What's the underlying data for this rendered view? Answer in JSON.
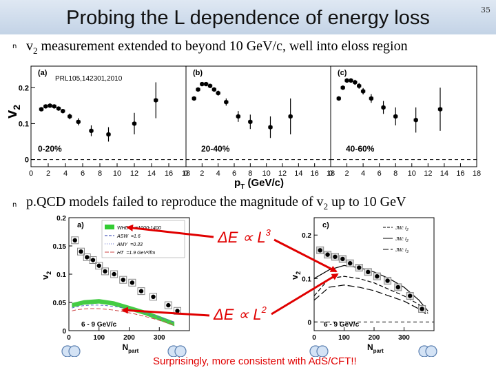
{
  "slide": {
    "title": "Probing the L dependence of energy loss",
    "page_number": "35",
    "bullets": [
      {
        "marker": "n",
        "pre": "v",
        "sub": "2",
        "post": " measurement extended to beyond 10 GeV/c, well into eloss region"
      },
      {
        "marker": "n",
        "pre": "p.QCD models failed to reproduce the magnitude of v",
        "sub": "2",
        "post": " up to 10 GeV"
      }
    ],
    "conclusion": "Surprisingly, more consistent with AdS/CFT!!"
  },
  "top_figure": {
    "reference": "PRL105,142301,2010",
    "y_axis_label": "v",
    "y_axis_sub": "2",
    "x_axis_label": "p",
    "x_axis_sub": "T",
    "x_axis_unit": " (GeV/c)",
    "y_ticks": [
      "0",
      "0.1",
      "0.2"
    ],
    "x_ticks": [
      "0",
      "2",
      "4",
      "6",
      "8",
      "10",
      "12",
      "14",
      "16",
      "18"
    ],
    "panels": [
      {
        "tag": "(a)",
        "centrality": "0-20%"
      },
      {
        "tag": "(b)",
        "centrality": "20-40%"
      },
      {
        "tag": "(c)",
        "centrality": "40-60%"
      }
    ]
  },
  "bottom_left": {
    "tag": "a)",
    "y_label": "v",
    "y_sub": "2",
    "x_label": "N",
    "x_sub": "part",
    "y_ticks": [
      "0",
      "0.05",
      "0.1",
      "0.15",
      "0.2"
    ],
    "x_ticks": [
      "0",
      "100",
      "200",
      "300"
    ],
    "range_label": "6 - 9 GeV/c",
    "legend": [
      "WHDG",
      "ASW",
      "AMY",
      "HT"
    ],
    "legend_params": [
      "=1000-1400",
      "=1.6",
      "=0.33",
      "=1.9 GeV²/fm"
    ]
  },
  "bottom_right": {
    "tag": "c)",
    "y_label": "v",
    "y_sub": "2",
    "x_label": "N",
    "x_sub": "part",
    "y_ticks": [
      "0",
      "0.1",
      "0.2"
    ],
    "x_ticks": [
      "0",
      "100",
      "200",
      "300"
    ],
    "range_label": "6 - 9 GeV/c",
    "legend": [
      "JW: I",
      "JW: I",
      "JW: I"
    ],
    "legend_sub": [
      "2",
      "2",
      "3"
    ]
  },
  "formulas": {
    "upper": {
      "lhs": "ΔE ∝ L",
      "exp": "3"
    },
    "lower": {
      "lhs": "ΔE ∝ L",
      "exp": "2"
    }
  },
  "chart_data": [
    {
      "type": "scatter",
      "title": "(a) 0-20%",
      "xlabel": "pT (GeV/c)",
      "ylabel": "v2",
      "xlim": [
        0,
        18
      ],
      "ylim": [
        -0.02,
        0.26
      ],
      "x": [
        1.2,
        1.7,
        2.2,
        2.7,
        3.2,
        3.7,
        4.5,
        5.5,
        7.0,
        9.0,
        12.0,
        14.5
      ],
      "y": [
        0.14,
        0.148,
        0.15,
        0.148,
        0.142,
        0.135,
        0.12,
        0.105,
        0.08,
        0.07,
        0.1,
        0.165
      ],
      "yerr": [
        0.005,
        0.005,
        0.005,
        0.005,
        0.006,
        0.006,
        0.008,
        0.01,
        0.015,
        0.02,
        0.03,
        0.05
      ]
    },
    {
      "type": "scatter",
      "title": "(b) 20-40%",
      "xlabel": "pT (GeV/c)",
      "ylabel": "v2",
      "xlim": [
        0,
        18
      ],
      "ylim": [
        -0.02,
        0.26
      ],
      "x": [
        1.0,
        1.5,
        2.0,
        2.5,
        3.0,
        3.5,
        4.0,
        5.0,
        6.5,
        8.0,
        10.5,
        13.0
      ],
      "y": [
        0.17,
        0.195,
        0.21,
        0.21,
        0.205,
        0.195,
        0.185,
        0.16,
        0.12,
        0.105,
        0.09,
        0.12
      ],
      "yerr": [
        0.005,
        0.005,
        0.005,
        0.005,
        0.006,
        0.006,
        0.007,
        0.01,
        0.015,
        0.02,
        0.03,
        0.05
      ]
    },
    {
      "type": "scatter",
      "title": "(c) 40-60%",
      "xlabel": "pT (GeV/c)",
      "ylabel": "v2",
      "xlim": [
        0,
        18
      ],
      "ylim": [
        -0.02,
        0.26
      ],
      "x": [
        1.0,
        1.5,
        2.0,
        2.5,
        3.0,
        3.5,
        4.0,
        5.0,
        6.5,
        8.0,
        10.5,
        13.5
      ],
      "y": [
        0.17,
        0.2,
        0.22,
        0.22,
        0.215,
        0.205,
        0.19,
        0.17,
        0.145,
        0.12,
        0.11,
        0.14
      ],
      "yerr": [
        0.006,
        0.006,
        0.006,
        0.006,
        0.007,
        0.008,
        0.009,
        0.012,
        0.018,
        0.025,
        0.035,
        0.06
      ]
    },
    {
      "type": "scatter",
      "title": "a)",
      "xlabel": "Npart",
      "ylabel": "v2",
      "xlim": [
        0,
        400
      ],
      "ylim": [
        0,
        0.2
      ],
      "x": [
        20,
        40,
        60,
        80,
        100,
        120,
        150,
        180,
        210,
        240,
        280,
        330,
        360
      ],
      "y": [
        0.16,
        0.14,
        0.13,
        0.125,
        0.115,
        0.105,
        0.1,
        0.09,
        0.085,
        0.07,
        0.06,
        0.045,
        0.035
      ],
      "series_models": [
        {
          "name": "WHDG",
          "x": [
            10,
            50,
            100,
            150,
            200,
            250,
            300,
            350
          ],
          "y": [
            0.045,
            0.05,
            0.052,
            0.048,
            0.04,
            0.032,
            0.022,
            0.012
          ]
        }
      ]
    },
    {
      "type": "scatter",
      "title": "c)",
      "xlabel": "Npart",
      "ylabel": "v2",
      "xlim": [
        0,
        400
      ],
      "ylim": [
        -0.02,
        0.24
      ],
      "x": [
        20,
        45,
        70,
        95,
        120,
        150,
        180,
        210,
        245,
        280,
        320,
        360
      ],
      "y": [
        0.165,
        0.155,
        0.15,
        0.145,
        0.135,
        0.125,
        0.115,
        0.105,
        0.095,
        0.08,
        0.06,
        0.03
      ],
      "series_models": [
        {
          "name": "JW: I2 solid",
          "x": [
            0,
            50,
            100,
            150,
            200,
            250,
            300,
            350,
            380
          ],
          "y": [
            0.1,
            0.12,
            0.13,
            0.125,
            0.115,
            0.1,
            0.08,
            0.05,
            0.025
          ]
        },
        {
          "name": "JW: I2 dashed",
          "x": [
            0,
            50,
            100,
            150,
            200,
            250,
            300,
            350,
            380
          ],
          "y": [
            0.06,
            0.1,
            0.105,
            0.1,
            0.09,
            0.075,
            0.06,
            0.04,
            0.02
          ]
        },
        {
          "name": "JW: I3 long dash",
          "x": [
            0,
            50,
            100,
            150,
            200,
            250,
            300,
            350,
            380
          ],
          "y": [
            0.05,
            0.08,
            0.085,
            0.08,
            0.072,
            0.06,
            0.048,
            0.03,
            0.015
          ]
        }
      ]
    }
  ]
}
